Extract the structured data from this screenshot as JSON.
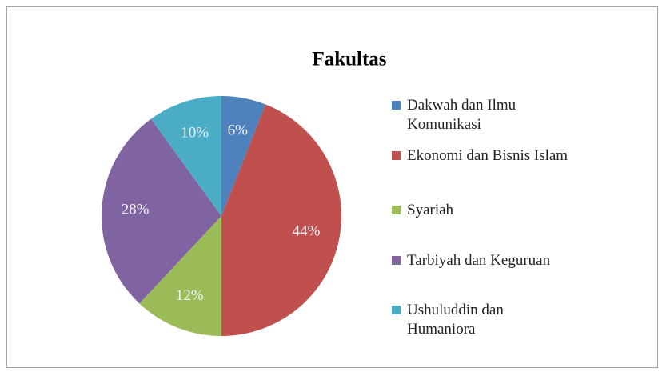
{
  "chart_data": {
    "type": "pie",
    "title": "Fakultas",
    "categories": [
      "Dakwah dan Ilmu\nKomunikasi",
      "Ekonomi dan Bisnis Islam",
      "Syariah",
      "Tarbiyah dan Keguruan",
      "Ushuluddin dan\nHumaniora"
    ],
    "values": [
      6,
      44,
      12,
      28,
      10
    ],
    "value_labels": [
      "6%",
      "44%",
      "12%",
      "28%",
      "10%"
    ],
    "colors": [
      "#4f81bd",
      "#c0504d",
      "#9bbb59",
      "#8064a2",
      "#4bacc6"
    ],
    "legend": "right"
  }
}
